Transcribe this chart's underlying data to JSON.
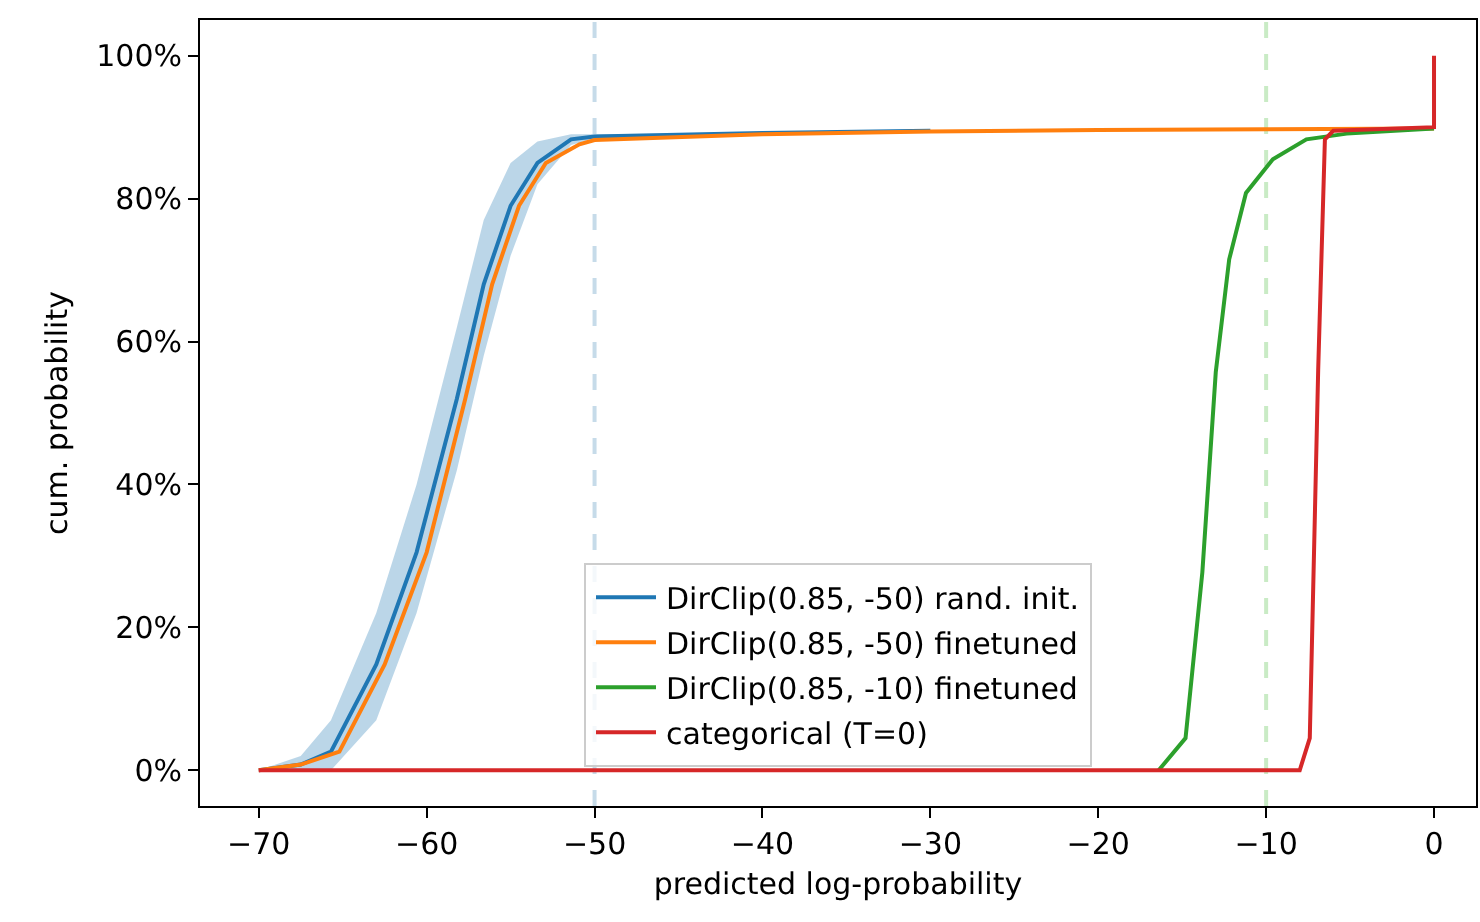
{
  "chart_data": {
    "type": "line",
    "xlabel": "predicted log-probability",
    "ylabel": "cum. probability",
    "xlim": [
      -73.5,
      2.5
    ],
    "xticks": [
      {
        "value": -70,
        "label": "−70"
      },
      {
        "value": -60,
        "label": "−60"
      },
      {
        "value": -50,
        "label": "−50"
      },
      {
        "value": -40,
        "label": "−40"
      },
      {
        "value": -30,
        "label": "−30"
      },
      {
        "value": -20,
        "label": "−20"
      },
      {
        "value": -10,
        "label": "−10"
      },
      0
    ],
    "ylim": [
      -5,
      105
    ],
    "yticks": [
      {
        "value": 0,
        "label": "0%"
      },
      {
        "value": 20,
        "label": "20%"
      },
      {
        "value": 40,
        "label": "40%"
      },
      {
        "value": 60,
        "label": "60%"
      },
      {
        "value": 80,
        "label": "80%"
      },
      {
        "value": 100,
        "label": "100%"
      }
    ],
    "grid": false,
    "legend": "bottom center",
    "line_style": "solid",
    "marker": "none",
    "ref_lines": [
      {
        "axis": "x",
        "value": -50,
        "color": "#c6dbe9",
        "line_style": "dashed"
      },
      {
        "axis": "x",
        "value": -10,
        "color": "#c9ebc5",
        "line_style": "dashed"
      }
    ],
    "series": [
      {
        "name": "DirClip(0.85, -50) rand. init.",
        "color": "#1f77b4",
        "x": [
          -70,
          -67.5,
          -65.7,
          -63,
          -60.6,
          -58.2,
          -56.6,
          -55,
          -53.4,
          -51.4,
          -50,
          -40,
          -30
        ],
        "values": [
          0,
          0.8,
          2.6,
          14.8,
          30.5,
          52,
          68,
          79,
          85,
          88.3,
          88.7,
          89.2,
          89.5
        ],
        "lower": [
          0,
          0,
          0,
          7,
          22,
          42,
          58,
          72,
          82,
          87.5,
          88.4,
          89.2,
          89.5
        ],
        "upper": [
          0,
          2,
          7,
          22,
          40,
          62,
          77,
          85,
          88,
          89,
          89,
          89.2,
          89.5
        ]
      },
      {
        "name": "DirClip(0.85, -50) finetuned",
        "color": "#ff7f0e",
        "x": [
          -70,
          -67.5,
          -65.2,
          -62.5,
          -60,
          -57.7,
          -56.1,
          -54.5,
          -52.9,
          -50.9,
          -50,
          -40,
          -30,
          -20,
          -10,
          0
        ],
        "values": [
          0,
          0.8,
          2.6,
          14.8,
          30.5,
          52,
          68,
          79,
          85,
          87.6,
          88.2,
          89,
          89.4,
          89.6,
          89.7,
          89.8
        ]
      },
      {
        "name": "DirClip(0.85, -10) finetuned",
        "color": "#2ca02c",
        "x": [
          -16.4,
          -14.8,
          -13.8,
          -13,
          -12.2,
          -11.2,
          -9.6,
          -7.6,
          -5.2,
          0
        ],
        "values": [
          0,
          4.5,
          27.7,
          55.7,
          71.5,
          80.8,
          85.5,
          88.3,
          89.1,
          89.8
        ]
      },
      {
        "name": "categorical (T=0)",
        "color": "#d62728",
        "x": [
          -70,
          -8,
          -7.4,
          -6.9,
          -6.5,
          -6,
          0,
          0
        ],
        "values": [
          0,
          0,
          4.5,
          56,
          88.3,
          89.5,
          90,
          100
        ]
      }
    ]
  }
}
